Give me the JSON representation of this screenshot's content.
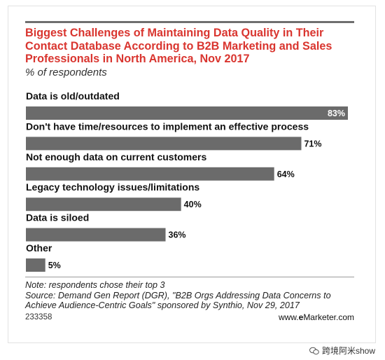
{
  "title": "Biggest Challenges of Maintaining Data Quality in Their Contact Database According to B2B Marketing and Sales Professionals in North America, Nov 2017",
  "subtitle": "% of respondents",
  "note": "Note: respondents chose their top 3",
  "source": "Source: Demand Gen Report (DGR), \"B2B Orgs Addressing Data Concerns to Achieve Audience-Centric Goals\" sponsored by Synthio, Nov 29, 2017",
  "chart_id": "233358",
  "brand": "www.eMarketer.com",
  "watermark": "跨境阿米show",
  "colors": {
    "title": "#d9352f",
    "bar": "#6b6b6b"
  },
  "chart_data": {
    "type": "bar",
    "orientation": "horizontal",
    "categories": [
      "Data is old/outdated",
      "Don't have time/resources to implement an effective process",
      "Not enough data on current customers",
      "Legacy technology issues/limitations",
      "Data is siloed",
      "Other"
    ],
    "values": [
      83,
      71,
      64,
      40,
      36,
      5
    ],
    "value_labels": [
      "83%",
      "71%",
      "64%",
      "40%",
      "36%",
      "5%"
    ],
    "title": "Biggest Challenges of Maintaining Data Quality in Their Contact Database According to B2B Marketing and Sales Professionals in North America, Nov 2017",
    "subtitle": "% of respondents",
    "xlim": [
      0,
      83
    ],
    "grid": false,
    "legend": "none"
  }
}
